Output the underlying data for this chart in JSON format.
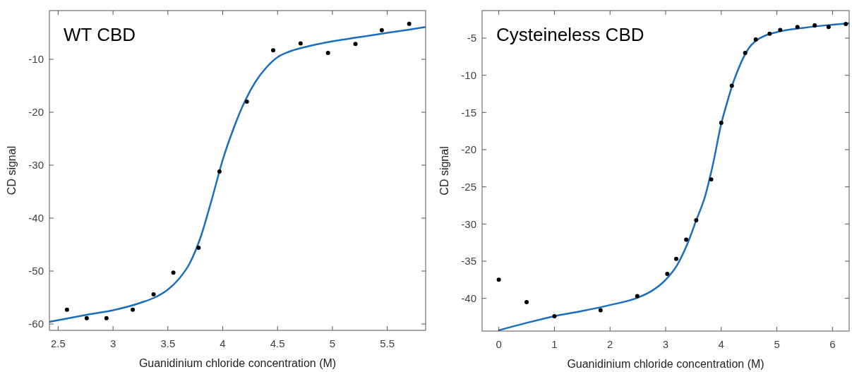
{
  "chart_data": [
    {
      "type": "scatter",
      "title": "WT CBD",
      "xlabel": "Guanidinium chloride concentration (M)",
      "ylabel": "CD signal",
      "xlim": [
        2.42,
        5.85
      ],
      "ylim": [
        -61.2,
        -0.8
      ],
      "xticks": [
        2.5,
        3,
        3.5,
        4,
        4.5,
        5,
        5.5
      ],
      "yticks": [
        -60,
        -50,
        -40,
        -30,
        -20,
        -10
      ],
      "grid": false,
      "series": [
        {
          "color": "#000000",
          "marker": "circle",
          "x": [
            2.58,
            2.76,
            2.94,
            3.18,
            3.37,
            3.55,
            3.78,
            3.97,
            4.22,
            4.46,
            4.71,
            4.96,
            5.21,
            5.45,
            5.7
          ],
          "values": [
            -57.3,
            -58.9,
            -58.9,
            -57.3,
            -54.4,
            -50.3,
            -45.6,
            -31.2,
            -18.0,
            -8.3,
            -7.0,
            -8.8,
            -7.1,
            -4.5,
            -3.3
          ]
        },
        {
          "type": "line",
          "color": "#1a6ebd",
          "line_style": "solid",
          "x": [
            2.42,
            2.75,
            3.0,
            3.25,
            3.4,
            3.5,
            3.6,
            3.7,
            3.8,
            3.9,
            4.0,
            4.1,
            4.2,
            4.3,
            4.4,
            4.5,
            4.6,
            4.75,
            5.0,
            5.25,
            5.5,
            5.7,
            5.85
          ],
          "values": [
            -59.6,
            -58.3,
            -57.4,
            -56.0,
            -54.8,
            -53.5,
            -51.5,
            -48.5,
            -43.5,
            -36.5,
            -29.0,
            -23.0,
            -18.0,
            -14.2,
            -11.5,
            -9.6,
            -8.6,
            -7.7,
            -6.6,
            -5.8,
            -5.0,
            -4.4,
            -3.9
          ]
        }
      ]
    },
    {
      "type": "scatter",
      "title": "Cysteineless CBD",
      "xlabel": "Guanidinium chloride concentration (M)",
      "ylabel": "CD signal",
      "xlim": [
        -0.3,
        6.3
      ],
      "ylim": [
        -44.4,
        -1.3
      ],
      "xticks": [
        0,
        1,
        2,
        3,
        4,
        5,
        6
      ],
      "yticks": [
        -40,
        -35,
        -30,
        -25,
        -20,
        -15,
        -10,
        -5
      ],
      "grid": false,
      "series": [
        {
          "color": "#000000",
          "marker": "circle",
          "x": [
            0.0,
            0.5,
            1.0,
            1.83,
            2.49,
            3.03,
            3.19,
            3.37,
            3.55,
            3.82,
            4.0,
            4.19,
            4.43,
            4.62,
            4.87,
            5.06,
            5.37,
            5.68,
            5.93,
            6.24
          ],
          "values": [
            -37.5,
            -40.5,
            -42.4,
            -41.6,
            -39.7,
            -36.7,
            -34.7,
            -32.1,
            -29.5,
            -24.0,
            -16.4,
            -11.4,
            -7.0,
            -5.2,
            -4.4,
            -3.9,
            -3.5,
            -3.3,
            -3.5,
            -3.1
          ]
        },
        {
          "type": "line",
          "color": "#1a6ebd",
          "line_style": "solid",
          "x": [
            0,
            0.5,
            1,
            1.5,
            2,
            2.5,
            2.75,
            3,
            3.2,
            3.4,
            3.55,
            3.7,
            3.85,
            4.0,
            4.1,
            4.2,
            4.3,
            4.4,
            4.5,
            4.6,
            4.75,
            5.0,
            5.5,
            6.0,
            6.3
          ],
          "values": [
            -44.3,
            -43.3,
            -42.4,
            -41.7,
            -40.9,
            -39.9,
            -39.0,
            -37.5,
            -35.6,
            -32.5,
            -29.5,
            -26.5,
            -22.0,
            -16.5,
            -13.8,
            -11.3,
            -9.3,
            -7.6,
            -6.3,
            -5.5,
            -4.8,
            -4.2,
            -3.6,
            -3.2,
            -3.0
          ]
        }
      ]
    }
  ]
}
